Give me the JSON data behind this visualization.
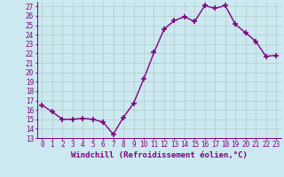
{
  "x": [
    0,
    1,
    2,
    3,
    4,
    5,
    6,
    7,
    8,
    9,
    10,
    11,
    12,
    13,
    14,
    15,
    16,
    17,
    18,
    19,
    20,
    21,
    22,
    23
  ],
  "y": [
    16.5,
    15.8,
    15.0,
    15.0,
    15.1,
    15.0,
    14.7,
    13.4,
    15.2,
    16.7,
    19.3,
    22.1,
    24.6,
    25.5,
    25.9,
    25.4,
    27.1,
    26.8,
    27.1,
    25.1,
    24.2,
    23.3,
    21.7,
    21.8
  ],
  "xlim": [
    -0.5,
    23.5
  ],
  "ylim": [
    13,
    27.5
  ],
  "yticks": [
    13,
    14,
    15,
    16,
    17,
    18,
    19,
    20,
    21,
    22,
    23,
    24,
    25,
    26,
    27
  ],
  "xticks": [
    0,
    1,
    2,
    3,
    4,
    5,
    6,
    7,
    8,
    9,
    10,
    11,
    12,
    13,
    14,
    15,
    16,
    17,
    18,
    19,
    20,
    21,
    22,
    23
  ],
  "xlabel": "Windchill (Refroidissement éolien,°C)",
  "line_color": "#800080",
  "marker": "+",
  "marker_size": 4,
  "bg_color": "#cce8f0",
  "grid_color": "#b0ccc8",
  "xlabel_fontsize": 6.5,
  "tick_fontsize": 5.5,
  "linewidth": 1.0
}
